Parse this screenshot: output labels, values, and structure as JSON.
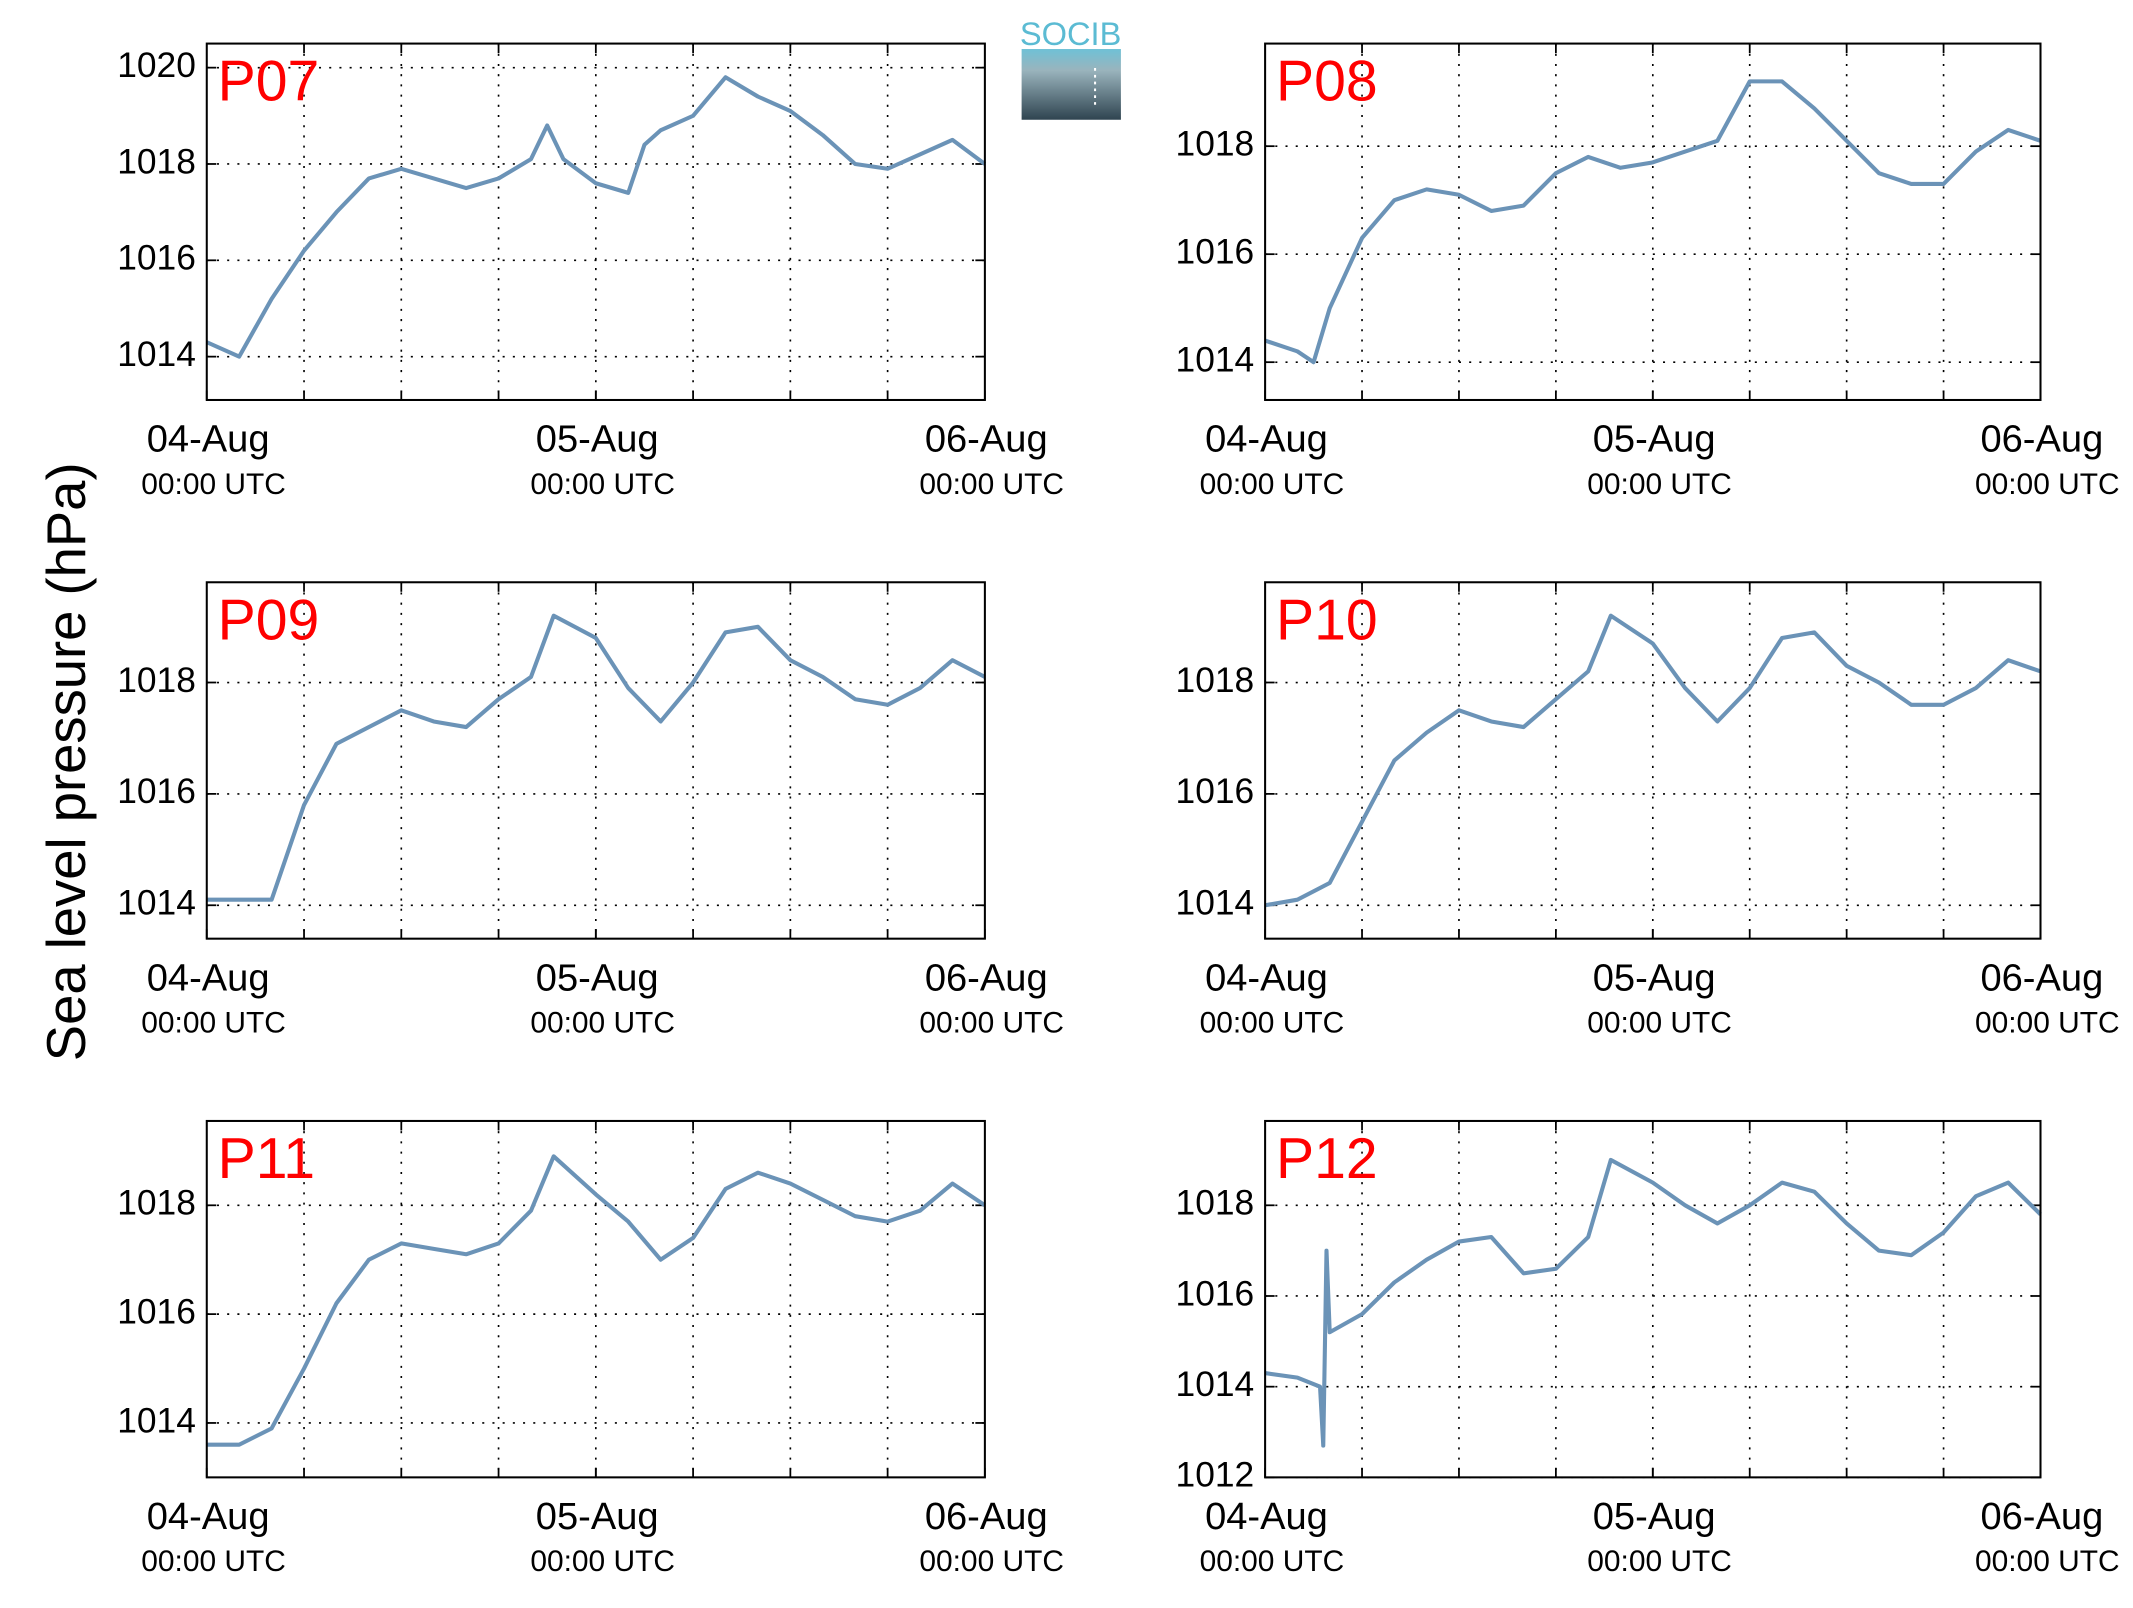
{
  "ylabel": "Sea level pressure (hPa)",
  "logo": "SOCIB",
  "chart_data": [
    {
      "type": "line",
      "title": "P07",
      "color": "#6b93b7",
      "grid": true,
      "x": [
        0,
        2,
        4,
        6,
        8,
        10,
        12,
        14,
        16,
        18,
        20,
        21,
        22,
        24,
        26,
        27,
        28,
        30,
        32,
        34,
        36,
        38,
        40,
        42,
        44,
        46,
        48
      ],
      "values": [
        1014.3,
        1014.0,
        1015.2,
        1016.2,
        1017.0,
        1017.7,
        1017.9,
        1017.7,
        1017.5,
        1017.7,
        1018.1,
        1018.8,
        1018.1,
        1017.6,
        1017.4,
        1018.4,
        1018.7,
        1019.0,
        1019.8,
        1019.4,
        1019.1,
        1018.6,
        1018.0,
        1017.9,
        1018.2,
        1018.5,
        1018.0
      ],
      "xlim": [
        0,
        48
      ],
      "ylim": [
        1013.1,
        1020.5
      ],
      "yticks": [
        1014,
        1016,
        1018,
        1020
      ],
      "xgrid": [
        6,
        12,
        18,
        24,
        30,
        36,
        42
      ],
      "xticks": [
        {
          "value": 0,
          "label": [
            "04-Aug",
            "00:00 UTC"
          ]
        },
        {
          "value": 24,
          "label": [
            "05-Aug",
            "00:00 UTC"
          ]
        },
        {
          "value": 48,
          "label": [
            "06-Aug",
            "00:00 UTC"
          ]
        }
      ]
    },
    {
      "type": "line",
      "title": "P08",
      "color": "#6b93b7",
      "grid": true,
      "x": [
        0,
        2,
        3,
        4,
        6,
        8,
        10,
        12,
        14,
        16,
        18,
        20,
        22,
        24,
        26,
        28,
        30,
        32,
        34,
        36,
        38,
        40,
        42,
        44,
        46,
        48
      ],
      "values": [
        1014.4,
        1014.2,
        1014.0,
        1015.0,
        1016.3,
        1017.0,
        1017.2,
        1017.1,
        1016.8,
        1016.9,
        1017.5,
        1017.8,
        1017.6,
        1017.7,
        1017.9,
        1018.1,
        1019.2,
        1019.2,
        1018.7,
        1018.1,
        1017.5,
        1017.3,
        1017.3,
        1017.9,
        1018.3,
        1018.1
      ],
      "xlim": [
        0,
        48
      ],
      "ylim": [
        1013.3,
        1019.9
      ],
      "yticks": [
        1014,
        1016,
        1018
      ],
      "xgrid": [
        6,
        12,
        18,
        24,
        30,
        36,
        42
      ],
      "xticks": [
        {
          "value": 0,
          "label": [
            "04-Aug",
            "00:00 UTC"
          ]
        },
        {
          "value": 24,
          "label": [
            "05-Aug",
            "00:00 UTC"
          ]
        },
        {
          "value": 48,
          "label": [
            "06-Aug",
            "00:00 UTC"
          ]
        }
      ]
    },
    {
      "type": "line",
      "title": "P09",
      "color": "#6b93b7",
      "grid": true,
      "x": [
        0,
        2,
        4,
        6,
        8,
        10,
        12,
        14,
        16,
        18,
        20,
        21.4,
        24,
        26,
        28,
        30,
        32,
        34,
        36,
        38,
        40,
        42,
        44,
        46,
        48
      ],
      "values": [
        1014.1,
        1014.1,
        1014.1,
        1015.8,
        1016.9,
        1017.2,
        1017.5,
        1017.3,
        1017.2,
        1017.7,
        1018.1,
        1019.2,
        1018.8,
        1017.9,
        1017.3,
        1018.0,
        1018.9,
        1019.0,
        1018.4,
        1018.1,
        1017.7,
        1017.6,
        1017.9,
        1018.4,
        1018.1
      ],
      "xlim": [
        0,
        48
      ],
      "ylim": [
        1013.4,
        1019.8
      ],
      "yticks": [
        1014,
        1016,
        1018
      ],
      "xgrid": [
        6,
        12,
        18,
        24,
        30,
        36,
        42
      ],
      "xticks": [
        {
          "value": 0,
          "label": [
            "04-Aug",
            "00:00 UTC"
          ]
        },
        {
          "value": 24,
          "label": [
            "05-Aug",
            "00:00 UTC"
          ]
        },
        {
          "value": 48,
          "label": [
            "06-Aug",
            "00:00 UTC"
          ]
        }
      ]
    },
    {
      "type": "line",
      "title": "P10",
      "color": "#6b93b7",
      "grid": true,
      "x": [
        0,
        2,
        4,
        6,
        8,
        10,
        12,
        14,
        16,
        18,
        20,
        21.4,
        24,
        26,
        28,
        30,
        32,
        34,
        36,
        38,
        40,
        42,
        44,
        46,
        48
      ],
      "values": [
        1014.0,
        1014.1,
        1014.4,
        1015.5,
        1016.6,
        1017.1,
        1017.5,
        1017.3,
        1017.2,
        1017.7,
        1018.2,
        1019.2,
        1018.7,
        1017.9,
        1017.3,
        1017.9,
        1018.8,
        1018.9,
        1018.3,
        1018.0,
        1017.6,
        1017.6,
        1017.9,
        1018.4,
        1018.2
      ],
      "xlim": [
        0,
        48
      ],
      "ylim": [
        1013.4,
        1019.8
      ],
      "yticks": [
        1014,
        1016,
        1018
      ],
      "xgrid": [
        6,
        12,
        18,
        24,
        30,
        36,
        42
      ],
      "xticks": [
        {
          "value": 0,
          "label": [
            "04-Aug",
            "00:00 UTC"
          ]
        },
        {
          "value": 24,
          "label": [
            "05-Aug",
            "00:00 UTC"
          ]
        },
        {
          "value": 48,
          "label": [
            "06-Aug",
            "00:00 UTC"
          ]
        }
      ]
    },
    {
      "type": "line",
      "title": "P11",
      "color": "#6b93b7",
      "grid": true,
      "x": [
        0,
        2,
        4,
        6,
        8,
        10,
        12,
        14,
        16,
        18,
        20,
        21.4,
        24,
        26,
        28,
        30,
        32,
        34,
        36,
        38,
        40,
        42,
        44,
        46,
        48
      ],
      "values": [
        1013.6,
        1013.6,
        1013.9,
        1015.0,
        1016.2,
        1017.0,
        1017.3,
        1017.2,
        1017.1,
        1017.3,
        1017.9,
        1018.9,
        1018.2,
        1017.7,
        1017.0,
        1017.4,
        1018.3,
        1018.6,
        1018.4,
        1018.1,
        1017.8,
        1017.7,
        1017.9,
        1018.4,
        1018.0
      ],
      "xlim": [
        0,
        48
      ],
      "ylim": [
        1013.0,
        1019.55
      ],
      "yticks": [
        1014,
        1016,
        1018
      ],
      "xgrid": [
        6,
        12,
        18,
        24,
        30,
        36,
        42
      ],
      "xticks": [
        {
          "value": 0,
          "label": [
            "04-Aug",
            "00:00 UTC"
          ]
        },
        {
          "value": 24,
          "label": [
            "05-Aug",
            "00:00 UTC"
          ]
        },
        {
          "value": 48,
          "label": [
            "06-Aug",
            "00:00 UTC"
          ]
        }
      ]
    },
    {
      "type": "line",
      "title": "P12",
      "color": "#6b93b7",
      "grid": true,
      "x": [
        0,
        2,
        3.4,
        3.6,
        3.8,
        4,
        6,
        8,
        10,
        12,
        14,
        16,
        18,
        20,
        21.4,
        24,
        26,
        28,
        30,
        32,
        34,
        36,
        38,
        40,
        42,
        44,
        46,
        48
      ],
      "values": [
        1014.3,
        1014.2,
        1014.0,
        1012.7,
        1017.0,
        1015.2,
        1015.6,
        1016.3,
        1016.8,
        1017.2,
        1017.3,
        1016.5,
        1016.6,
        1017.3,
        1019.0,
        1018.5,
        1018.0,
        1017.6,
        1018.0,
        1018.5,
        1018.3,
        1017.6,
        1017.0,
        1016.9,
        1017.4,
        1018.2,
        1018.5,
        1017.8
      ],
      "xlim": [
        0,
        48
      ],
      "ylim": [
        1012.0,
        1019.86
      ],
      "yticks": [
        1012,
        1014,
        1016,
        1018
      ],
      "xgrid": [
        6,
        12,
        18,
        24,
        30,
        36,
        42
      ],
      "xticks": [
        {
          "value": 0,
          "label": [
            "04-Aug",
            "00:00 UTC"
          ]
        },
        {
          "value": 24,
          "label": [
            "05-Aug",
            "00:00 UTC"
          ]
        },
        {
          "value": 48,
          "label": [
            "06-Aug",
            "00:00 UTC"
          ]
        }
      ]
    }
  ]
}
